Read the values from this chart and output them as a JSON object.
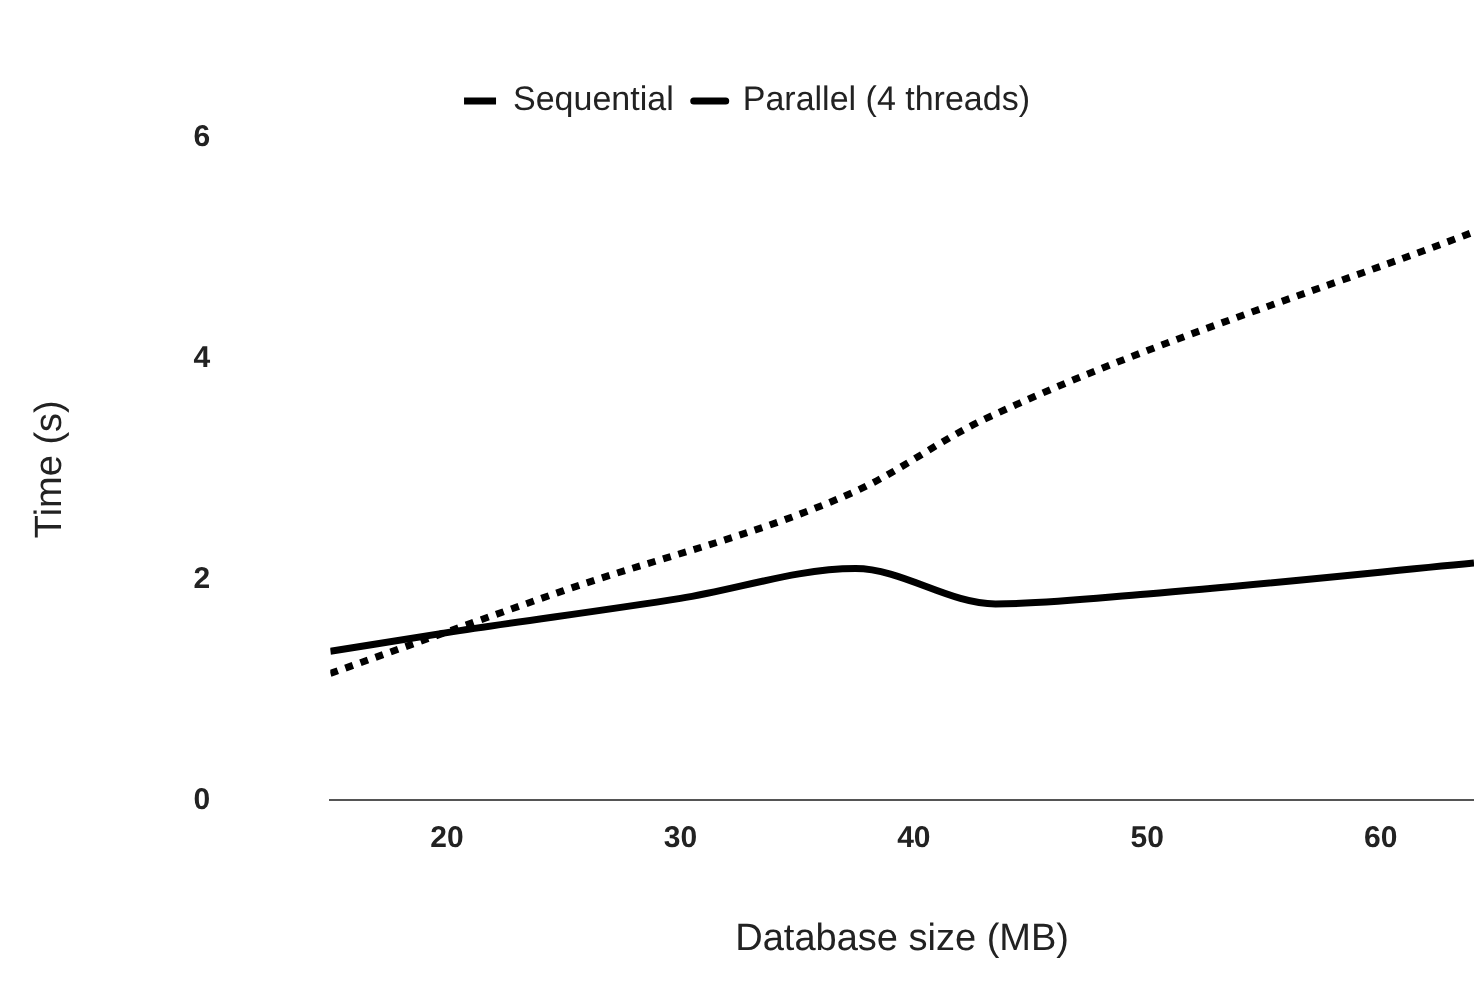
{
  "chart_data": {
    "type": "line",
    "xlabel": "Database size (MB)",
    "ylabel": "Time (s)",
    "xlim": [
      15,
      64
    ],
    "xticks": [
      20,
      30,
      40,
      50,
      60
    ],
    "ylim": [
      0,
      6
    ],
    "yticks": [
      0,
      2,
      4,
      6
    ],
    "grid": false,
    "legend": "top",
    "marker": "none",
    "series": [
      {
        "name": "Sequential",
        "color": "#000000",
        "line_style": "dotted",
        "x": [
          15,
          25,
          37.5,
          43,
          64
        ],
        "values": [
          1.15,
          1.9,
          2.8,
          3.45,
          5.15
        ]
      },
      {
        "name": "Parallel (4 threads)",
        "color": "#000000",
        "line_style": "solid",
        "x": [
          15,
          20,
          30,
          37.5,
          43.5,
          50,
          64
        ],
        "values": [
          1.35,
          1.52,
          1.83,
          2.1,
          1.78,
          1.87,
          2.15
        ]
      }
    ]
  }
}
